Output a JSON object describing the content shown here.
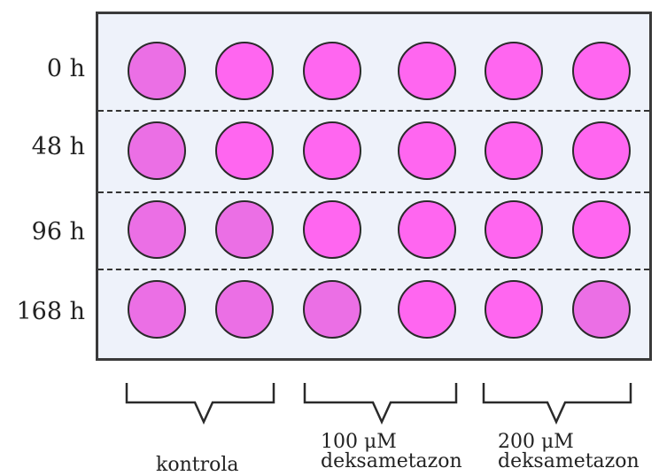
{
  "rows": [
    {
      "label": "0 h"
    },
    {
      "label": "48 h"
    },
    {
      "label": "96 h"
    },
    {
      "label": "168 h"
    }
  ],
  "groups": [
    {
      "lines": [
        "kontrola"
      ]
    },
    {
      "lines": [
        "100 μM",
        "deksametazon"
      ]
    },
    {
      "lines": [
        "200 μM",
        "deksametazon"
      ]
    }
  ],
  "colors": {
    "plate_background": "#eef2fa",
    "well_pink": "#ff66f0",
    "well_dim_pink": "#eb6fe5",
    "outline": "#2a2a2a"
  },
  "wells": [
    [
      "dim",
      "pink",
      "pink",
      "pink",
      "pink",
      "pink"
    ],
    [
      "dim",
      "pink",
      "pink",
      "pink",
      "pink",
      "pink"
    ],
    [
      "dim",
      "dim",
      "pink",
      "pink",
      "pink",
      "pink"
    ],
    [
      "dim",
      "dim",
      "dim",
      "pink",
      "pink",
      "dim"
    ]
  ]
}
